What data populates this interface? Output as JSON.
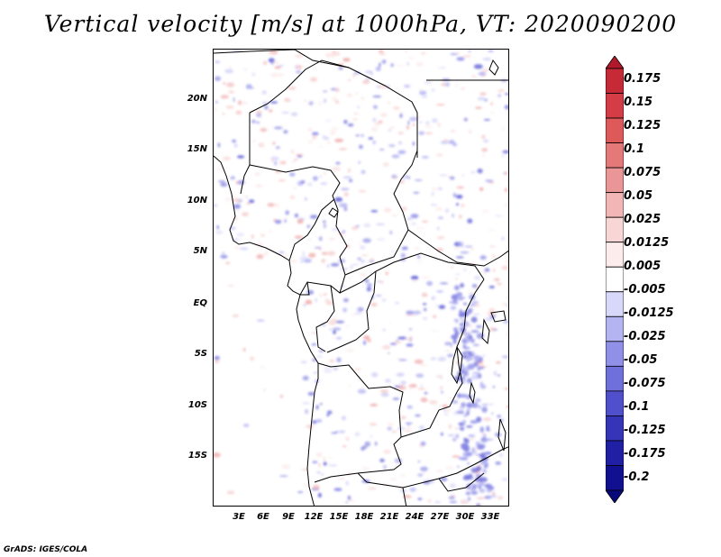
{
  "title": "Vertical velocity [m/s] at 1000hPa, VT: 2020090200",
  "credit": "GrADS: IGES/COLA",
  "map": {
    "lon_range": [
      0,
      34
    ],
    "lat_range": [
      -20,
      25
    ],
    "lat_labels": [
      "20N",
      "15N",
      "10N",
      "5N",
      "EQ",
      "5S",
      "10S",
      "15S"
    ],
    "lon_labels": [
      "3E",
      "6E",
      "9E",
      "12E",
      "15E",
      "18E",
      "21E",
      "24E",
      "27E",
      "30E",
      "33E"
    ]
  },
  "colorbar": {
    "labels": [
      "0.175",
      "0.15",
      "0.125",
      "0.1",
      "0.075",
      "0.05",
      "0.025",
      "0.0125",
      "0.005",
      "-0.005",
      "-0.0125",
      "-0.025",
      "-0.05",
      "-0.075",
      "-0.1",
      "-0.125",
      "-0.175",
      "-0.2"
    ],
    "colors": [
      "#b2182b",
      "#c62a36",
      "#d43d45",
      "#de5a5a",
      "#e57878",
      "#eb9696",
      "#f2b6b6",
      "#f8d6d6",
      "#fcecec",
      "#ffffff",
      "#d8d8fa",
      "#b4b4f2",
      "#9090e8",
      "#7070dc",
      "#5050cc",
      "#3535b8",
      "#2020a4",
      "#101090",
      "#08087a"
    ]
  }
}
